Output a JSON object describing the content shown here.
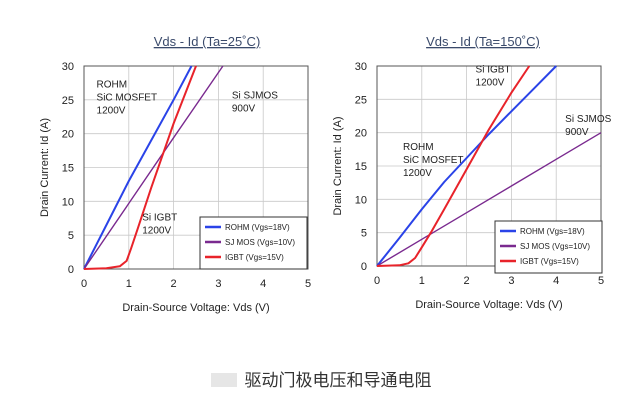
{
  "caption": "驱动门极电压和导通电阻",
  "chart_data": [
    {
      "type": "line",
      "title": "Vds - Id (Ta=25˚C)",
      "xlabel": "Drain-Source Voltage: Vds (V)",
      "ylabel": "Drain Current: Id (A)",
      "xlim": [
        0,
        5
      ],
      "ylim": [
        0,
        30
      ],
      "xticks": [
        "0",
        "1",
        "2",
        "3",
        "4",
        "5"
      ],
      "yticks": [
        "0",
        "5",
        "10",
        "15",
        "20",
        "25",
        "30"
      ],
      "grid": true,
      "legend_position": "bottom-right",
      "annotations": [
        {
          "lines": [
            "ROHM",
            "SiC MOSFET",
            "1200V"
          ],
          "x": 0.28,
          "y": 26.8
        },
        {
          "lines": [
            "Si SJMOS",
            "900V"
          ],
          "x": 3.3,
          "y": 25.2
        },
        {
          "lines": [
            "Si IGBT",
            "1200V"
          ],
          "x": 1.3,
          "y": 7.2
        }
      ],
      "series": [
        {
          "name": "ROHM (Vgs=18V)",
          "color": "#2a43e8",
          "x": [
            0,
            0.5,
            1.0,
            1.5,
            2.0,
            2.4
          ],
          "y": [
            0,
            6.5,
            13.0,
            19.0,
            25.0,
            30.0
          ]
        },
        {
          "name": "SJ MOS (Vgs=10V)",
          "color": "#7a2a8f",
          "x": [
            0,
            1.0,
            2.0,
            3.1
          ],
          "y": [
            0,
            9.7,
            19.4,
            30.0
          ]
        },
        {
          "name": "IGBT (Vgs=15V)",
          "color": "#e8232a",
          "x": [
            0,
            0.5,
            0.8,
            0.95,
            1.05,
            1.2,
            1.5,
            2.0,
            2.5
          ],
          "y": [
            0,
            0.1,
            0.4,
            1.2,
            3.0,
            6.0,
            12.0,
            21.5,
            30.0
          ]
        }
      ]
    },
    {
      "type": "line",
      "title": "Vds - Id (Ta=150˚C)",
      "xlabel": "Drain-Source Voltage: Vds (V)",
      "ylabel": "Drain Current: Id (A)",
      "xlim": [
        0,
        5
      ],
      "ylim": [
        0,
        30
      ],
      "xticks": [
        "0",
        "1",
        "2",
        "3",
        "4",
        "5"
      ],
      "yticks": [
        "0",
        "5",
        "10",
        "15",
        "20",
        "25",
        "30"
      ],
      "grid": true,
      "legend_position": "bottom-right",
      "annotations": [
        {
          "lines": [
            "Si IGBT",
            "1200V"
          ],
          "x": 2.2,
          "y": 29.0
        },
        {
          "lines": [
            "Si SJMOS",
            "900V"
          ],
          "x": 4.2,
          "y": 21.6
        },
        {
          "lines": [
            "ROHM",
            "SiC MOSFET",
            "1200V"
          ],
          "x": 0.58,
          "y": 17.4
        }
      ],
      "series": [
        {
          "name": "ROHM (Vgs=18V)",
          "color": "#2a43e8",
          "x": [
            0,
            0.5,
            1.0,
            1.5,
            2.0,
            2.5,
            3.0,
            3.5,
            4.0
          ],
          "y": [
            0,
            4.2,
            8.5,
            12.6,
            16.2,
            19.8,
            23.2,
            26.6,
            30.0
          ]
        },
        {
          "name": "SJ MOS (Vgs=10V)",
          "color": "#7a2a8f",
          "x": [
            0,
            1.0,
            2.0,
            3.0,
            4.0,
            5.0
          ],
          "y": [
            0,
            4.0,
            8.0,
            12.0,
            16.0,
            20.0
          ]
        },
        {
          "name": "IGBT (Vgs=15V)",
          "color": "#e8232a",
          "x": [
            0,
            0.5,
            0.7,
            0.85,
            1.0,
            1.2,
            1.5,
            2.0,
            2.5,
            3.0,
            3.4
          ],
          "y": [
            0,
            0.1,
            0.4,
            1.2,
            2.8,
            5.0,
            8.5,
            14.5,
            20.5,
            26.0,
            30.0
          ]
        }
      ]
    }
  ]
}
